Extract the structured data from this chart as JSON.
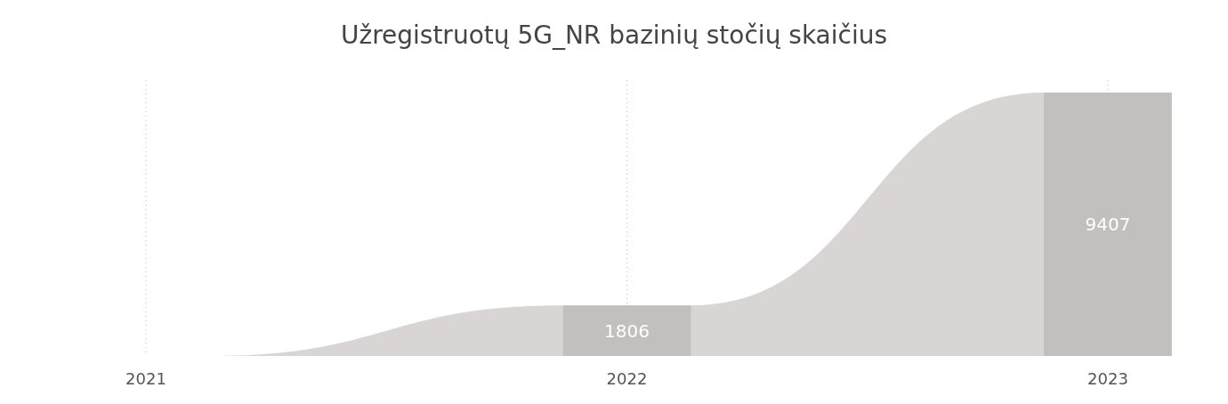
{
  "chart_data": {
    "type": "bar",
    "title": "Užregistruotų 5G_NR bazinių stočių skaičius",
    "categories": [
      "2021",
      "2022",
      "2023"
    ],
    "series": [
      {
        "type": "area",
        "color": "#d9d5d4",
        "values": [
          0,
          1806,
          9407
        ]
      },
      {
        "color": "#c4bfbf",
        "values": [
          0,
          1806,
          9407
        ],
        "value_labels": [
          null,
          "1806",
          "9407"
        ]
      }
    ],
    "grid": "x"
  }
}
